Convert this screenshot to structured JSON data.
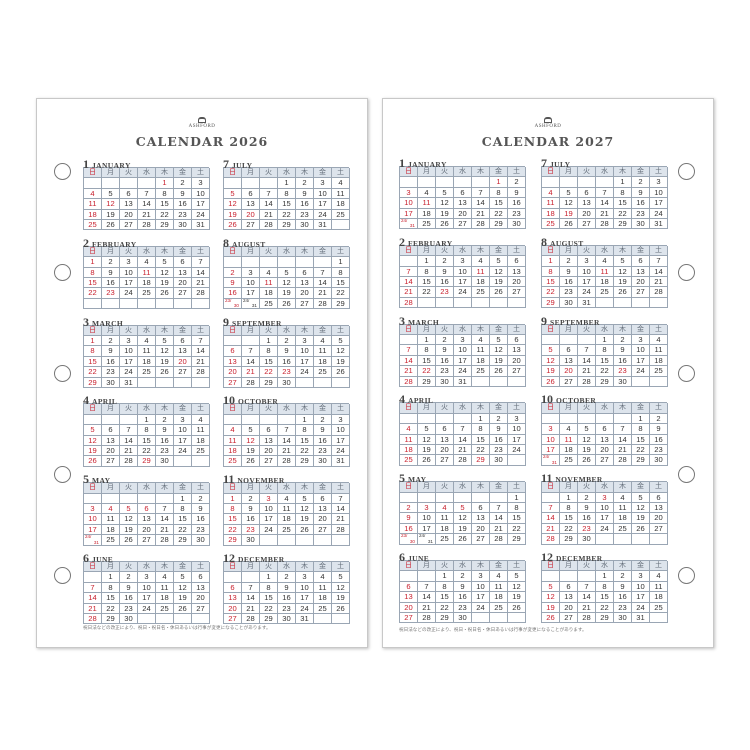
{
  "weekdays": [
    "日",
    "月",
    "火",
    "水",
    "木",
    "金",
    "土"
  ],
  "colors": {
    "holiday": "#c8202e",
    "header_bg": "#dde4ec",
    "grid": "#9aa6b4",
    "title": "#555555"
  },
  "brand": "ASHFORD",
  "footnote": "祝日法などの改正により、祝日・祝日名・休日あるいは行事が変更になることがあります。",
  "pages": [
    {
      "title": "CALENDAR 2026",
      "months": [
        {
          "num": "1",
          "name": "JANUARY",
          "start": 4,
          "days": 31,
          "holidays": [
            1,
            12
          ]
        },
        {
          "num": "2",
          "name": "FEBRUARY",
          "start": 0,
          "days": 28,
          "holidays": [
            11,
            23
          ]
        },
        {
          "num": "3",
          "name": "MARCH",
          "start": 0,
          "days": 31,
          "holidays": [
            20
          ]
        },
        {
          "num": "4",
          "name": "APRIL",
          "start": 3,
          "days": 30,
          "holidays": [
            29
          ]
        },
        {
          "num": "5",
          "name": "MAY",
          "start": 5,
          "days": 31,
          "holidays": [
            3,
            4,
            5,
            6
          ]
        },
        {
          "num": "6",
          "name": "JUNE",
          "start": 1,
          "days": 30,
          "holidays": []
        },
        {
          "num": "7",
          "name": "JULY",
          "start": 3,
          "days": 31,
          "holidays": [
            20
          ]
        },
        {
          "num": "8",
          "name": "AUGUST",
          "start": 6,
          "days": 31,
          "holidays": [
            11
          ]
        },
        {
          "num": "9",
          "name": "SEPTEMBER",
          "start": 2,
          "days": 30,
          "holidays": [
            21,
            22,
            23
          ]
        },
        {
          "num": "10",
          "name": "OCTOBER",
          "start": 4,
          "days": 31,
          "holidays": [
            12
          ]
        },
        {
          "num": "11",
          "name": "NOVEMBER",
          "start": 0,
          "days": 30,
          "holidays": [
            3,
            23
          ]
        },
        {
          "num": "12",
          "name": "DECEMBER",
          "start": 2,
          "days": 31,
          "holidays": []
        }
      ]
    },
    {
      "title": "CALENDAR 2027",
      "months": [
        {
          "num": "1",
          "name": "JANUARY",
          "start": 5,
          "days": 31,
          "holidays": [
            1,
            11
          ]
        },
        {
          "num": "2",
          "name": "FEBRUARY",
          "start": 1,
          "days": 28,
          "holidays": [
            11,
            23
          ]
        },
        {
          "num": "3",
          "name": "MARCH",
          "start": 1,
          "days": 31,
          "holidays": [
            21,
            22
          ]
        },
        {
          "num": "4",
          "name": "APRIL",
          "start": 4,
          "days": 30,
          "holidays": [
            29
          ]
        },
        {
          "num": "5",
          "name": "MAY",
          "start": 6,
          "days": 31,
          "holidays": [
            3,
            4,
            5
          ]
        },
        {
          "num": "6",
          "name": "JUNE",
          "start": 2,
          "days": 30,
          "holidays": []
        },
        {
          "num": "7",
          "name": "JULY",
          "start": 4,
          "days": 31,
          "holidays": [
            19
          ]
        },
        {
          "num": "8",
          "name": "AUGUST",
          "start": 0,
          "days": 31,
          "holidays": [
            11
          ]
        },
        {
          "num": "9",
          "name": "SEPTEMBER",
          "start": 3,
          "days": 30,
          "holidays": [
            20,
            23
          ]
        },
        {
          "num": "10",
          "name": "OCTOBER",
          "start": 5,
          "days": 31,
          "holidays": [
            11
          ]
        },
        {
          "num": "11",
          "name": "NOVEMBER",
          "start": 1,
          "days": 30,
          "holidays": [
            3,
            23
          ]
        },
        {
          "num": "12",
          "name": "DECEMBER",
          "start": 3,
          "days": 31,
          "holidays": []
        }
      ]
    }
  ]
}
